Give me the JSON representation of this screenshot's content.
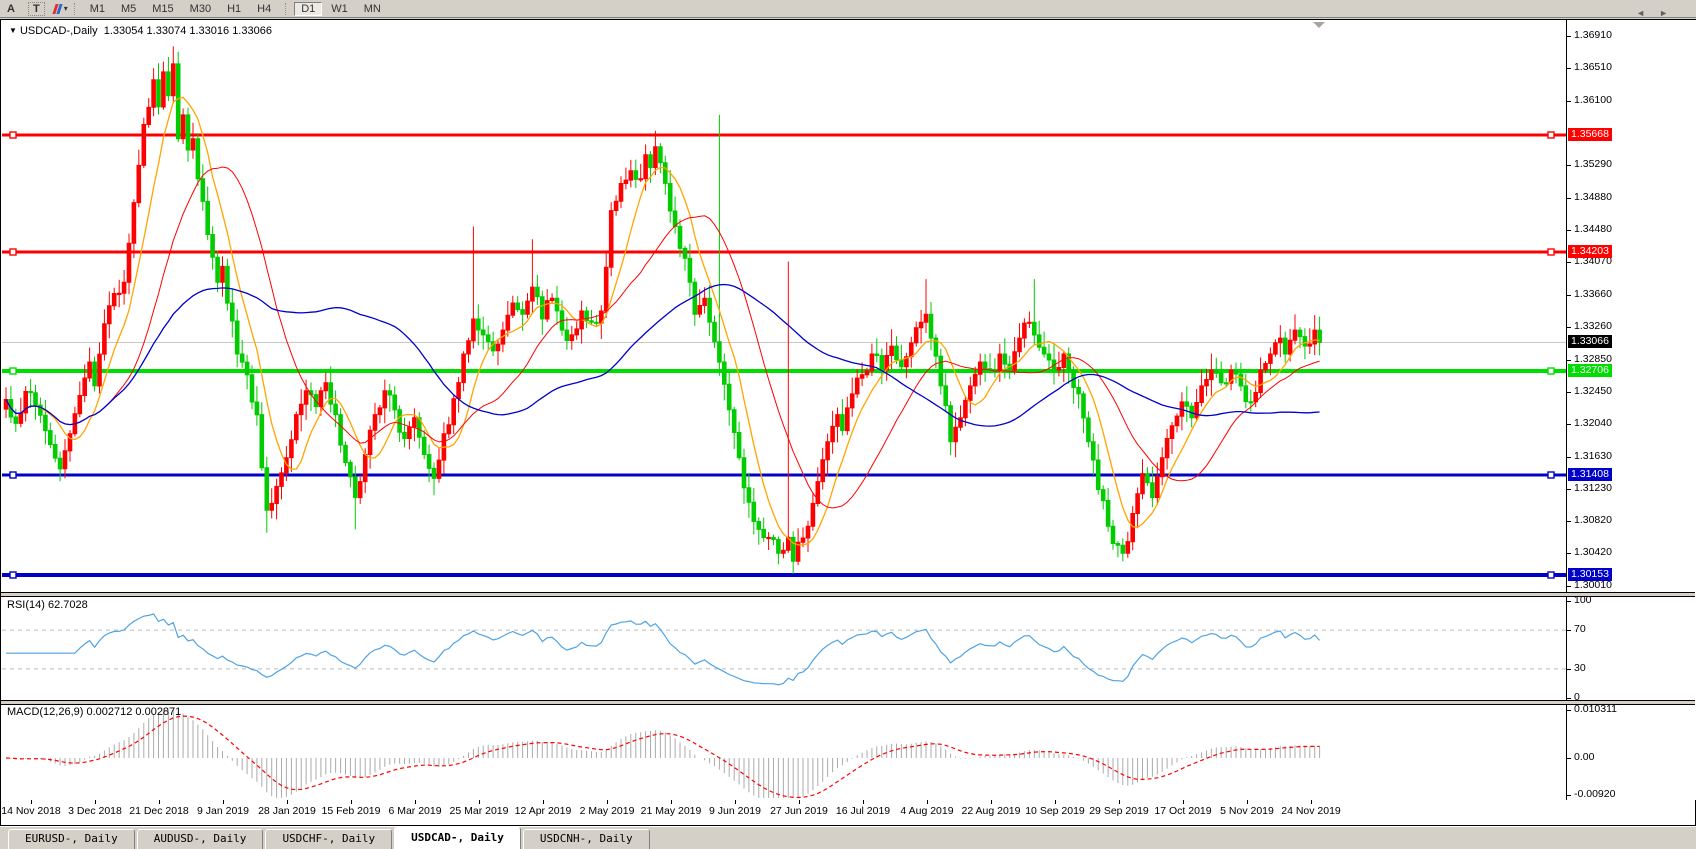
{
  "toolbar": {
    "tool_a": "A",
    "tool_t": "T",
    "crayon_icon": "colors-crayon-icon",
    "timeframes": [
      {
        "label": "M1"
      },
      {
        "label": "M5"
      },
      {
        "label": "M15"
      },
      {
        "label": "M30"
      },
      {
        "label": "H1"
      },
      {
        "label": "H4"
      },
      {
        "label": "D1",
        "active": true
      },
      {
        "label": "W1"
      },
      {
        "label": "MN"
      }
    ]
  },
  "chart": {
    "title_marker": "▼",
    "title": "USDCAD-,Daily",
    "quote": "1.33054 1.33074 1.33016 1.33066"
  },
  "price_axis": {
    "ticks": [
      "1.36910",
      "1.36510",
      "1.36100",
      "1.35290",
      "1.34880",
      "1.34480",
      "1.34070",
      "1.33660",
      "1.33260",
      "1.32850",
      "1.32450",
      "1.32040",
      "1.31630",
      "1.31230",
      "1.30820",
      "1.30420",
      "1.30010"
    ],
    "badges": [
      {
        "value": "1.35668",
        "bg": "#FF0000",
        "fg": "#FFFFFF"
      },
      {
        "value": "1.34203",
        "bg": "#FF0000",
        "fg": "#FFFFFF"
      },
      {
        "value": "1.33066",
        "bg": "#000000",
        "fg": "#FFFFFF"
      },
      {
        "value": "1.32706",
        "bg": "#00DD00",
        "fg": "#FFFFFF"
      },
      {
        "value": "1.31408",
        "bg": "#0000C8",
        "fg": "#FFFFFF"
      },
      {
        "value": "1.30153",
        "bg": "#0000C8",
        "fg": "#FFFFFF"
      }
    ]
  },
  "rsi_pane": {
    "label": "RSI(14) 62.7028",
    "ticks": [
      {
        "v": 100,
        "t": "100"
      },
      {
        "v": 70,
        "t": "70"
      },
      {
        "v": 30,
        "t": "30"
      },
      {
        "v": 0,
        "t": "0"
      }
    ],
    "dashed_levels": [
      70,
      30
    ],
    "line_color": "#4FA3E3"
  },
  "macd_pane": {
    "label": "MACD(12,26,9) 0.002712 0.002871",
    "ticks": [
      {
        "v": 0.010311,
        "t": "0.010311"
      },
      {
        "v": 0.0,
        "t": "0.00"
      },
      {
        "v": -0.0092,
        "t": "-0.00920"
      }
    ],
    "hist_color": "#ABABAB",
    "signal_color": "#FF0000"
  },
  "dates": [
    "14 Nov 2018",
    "3 Dec 2018",
    "21 Dec 2018",
    "9 Jan 2019",
    "28 Jan 2019",
    "15 Feb 2019",
    "6 Mar 2019",
    "25 Mar 2019",
    "12 Apr 2019",
    "2 May 2019",
    "21 May 2019",
    "9 Jun 2019",
    "27 Jun 2019",
    "16 Jul 2019",
    "4 Aug 2019",
    "22 Aug 2019",
    "10 Sep 2019",
    "29 Sep 2019",
    "17 Oct 2019",
    "5 Nov 2019",
    "24 Nov 2019"
  ],
  "tabs": [
    {
      "label": "EURUSD-, Daily"
    },
    {
      "label": "AUDUSD-, Daily"
    },
    {
      "label": "USDCHF-, Daily"
    },
    {
      "label": "USDCAD-, Daily",
      "active": true
    },
    {
      "label": "USDCNH-, Daily"
    }
  ],
  "tab_scroll": {
    "left": "◄",
    "right": "►"
  },
  "chart_data": {
    "type": "candlestick",
    "symbol": "USDCAD",
    "period": "Daily",
    "bar_open": 1.33054,
    "bar_high": 1.33074,
    "bar_low": 1.33016,
    "bar_close": 1.33066,
    "up_color": "#FF0000",
    "down_color": "#00CC00",
    "price_range": {
      "top": 1.3691,
      "bottom": 1.3001
    },
    "current_price_line": {
      "price": 1.33066,
      "color": "#C8C8C8"
    },
    "hlines": [
      {
        "price": 1.35668,
        "color": "#FF0000",
        "width": 3
      },
      {
        "price": 1.34203,
        "color": "#FF0000",
        "width": 3
      },
      {
        "price": 1.32706,
        "color": "#00DD00",
        "width": 4
      },
      {
        "price": 1.31408,
        "color": "#0000C8",
        "width": 3
      },
      {
        "price": 1.30153,
        "color": "#0000C8",
        "width": 4
      }
    ],
    "moving_averages": [
      {
        "window": 8,
        "color": "#FFA500",
        "stroke": 1.3
      },
      {
        "window": 21,
        "color": "#FF0000",
        "stroke": 1.0
      },
      {
        "window": 55,
        "color": "#0000CC",
        "stroke": 1.3
      }
    ],
    "num_bars": 268,
    "price_anchors": [
      [
        0,
        1.3235
      ],
      [
        2,
        1.3205
      ],
      [
        4,
        1.3245
      ],
      [
        6,
        1.3228
      ],
      [
        8,
        1.3196
      ],
      [
        11,
        1.3148
      ],
      [
        13,
        1.3192
      ],
      [
        15,
        1.324
      ],
      [
        17,
        1.3282
      ],
      [
        18,
        1.3252
      ],
      [
        20,
        1.333
      ],
      [
        22,
        1.3368
      ],
      [
        24,
        1.3382
      ],
      [
        26,
        1.3482
      ],
      [
        28,
        1.358
      ],
      [
        30,
        1.3636
      ],
      [
        31,
        1.3602
      ],
      [
        32,
        1.3646
      ],
      [
        33,
        1.3616
      ],
      [
        34,
        1.3656
      ],
      [
        35,
        1.3562
      ],
      [
        36,
        1.3592
      ],
      [
        37,
        1.3548
      ],
      [
        38,
        1.3562
      ],
      [
        39,
        1.3512
      ],
      [
        41,
        1.3442
      ],
      [
        43,
        1.3382
      ],
      [
        44,
        1.3402
      ],
      [
        45,
        1.3356
      ],
      [
        47,
        1.3292
      ],
      [
        49,
        1.3266
      ],
      [
        51,
        1.3216
      ],
      [
        53,
        1.3096
      ],
      [
        55,
        1.3126
      ],
      [
        57,
        1.3162
      ],
      [
        59,
        1.3216
      ],
      [
        61,
        1.3246
      ],
      [
        63,
        1.3226
      ],
      [
        65,
        1.3256
      ],
      [
        67,
        1.3216
      ],
      [
        69,
        1.3156
      ],
      [
        71,
        1.3112
      ],
      [
        73,
        1.3166
      ],
      [
        75,
        1.3216
      ],
      [
        77,
        1.3246
      ],
      [
        79,
        1.3222
      ],
      [
        81,
        1.3186
      ],
      [
        83,
        1.3212
      ],
      [
        85,
        1.3166
      ],
      [
        87,
        1.3136
      ],
      [
        89,
        1.3192
      ],
      [
        91,
        1.3236
      ],
      [
        93,
        1.3292
      ],
      [
        95,
        1.3336
      ],
      [
        97,
        1.3316
      ],
      [
        99,
        1.3296
      ],
      [
        101,
        1.3322
      ],
      [
        103,
        1.3356
      ],
      [
        105,
        1.3342
      ],
      [
        107,
        1.3376
      ],
      [
        109,
        1.3336
      ],
      [
        111,
        1.3362
      ],
      [
        113,
        1.3322
      ],
      [
        115,
        1.3316
      ],
      [
        117,
        1.3346
      ],
      [
        119,
        1.3332
      ],
      [
        121,
        1.3346
      ],
      [
        123,
        1.3472
      ],
      [
        125,
        1.3506
      ],
      [
        127,
        1.3522
      ],
      [
        129,
        1.3512
      ],
      [
        130,
        1.3542
      ],
      [
        131,
        1.3526
      ],
      [
        132,
        1.3552
      ],
      [
        133,
        1.3532
      ],
      [
        134,
        1.3506
      ],
      [
        136,
        1.3452
      ],
      [
        138,
        1.3412
      ],
      [
        140,
        1.3342
      ],
      [
        142,
        1.3362
      ],
      [
        143,
        1.3332
      ],
      [
        145,
        1.3282
      ],
      [
        147,
        1.3222
      ],
      [
        149,
        1.3162
      ],
      [
        151,
        1.3106
      ],
      [
        153,
        1.3072
      ],
      [
        155,
        1.3062
      ],
      [
        157,
        1.3042
      ],
      [
        159,
        1.3062
      ],
      [
        160,
        1.3032
      ],
      [
        161,
        1.3056
      ],
      [
        163,
        1.3076
      ],
      [
        165,
        1.3132
      ],
      [
        167,
        1.3182
      ],
      [
        169,
        1.3216
      ],
      [
        170,
        1.3196
      ],
      [
        172,
        1.3242
      ],
      [
        174,
        1.3266
      ],
      [
        176,
        1.3292
      ],
      [
        178,
        1.3272
      ],
      [
        180,
        1.3302
      ],
      [
        182,
        1.3276
      ],
      [
        184,
        1.3306
      ],
      [
        186,
        1.3332
      ],
      [
        187,
        1.3342
      ],
      [
        188,
        1.3312
      ],
      [
        190,
        1.3252
      ],
      [
        192,
        1.3182
      ],
      [
        194,
        1.3212
      ],
      [
        196,
        1.3252
      ],
      [
        198,
        1.3282
      ],
      [
        200,
        1.3272
      ],
      [
        202,
        1.3292
      ],
      [
        204,
        1.3272
      ],
      [
        206,
        1.3312
      ],
      [
        208,
        1.3332
      ],
      [
        209,
        1.3316
      ],
      [
        211,
        1.3292
      ],
      [
        213,
        1.3272
      ],
      [
        215,
        1.3292
      ],
      [
        216,
        1.3272
      ],
      [
        218,
        1.3242
      ],
      [
        220,
        1.3182
      ],
      [
        222,
        1.3122
      ],
      [
        224,
        1.3076
      ],
      [
        226,
        1.3052
      ],
      [
        227,
        1.3042
      ],
      [
        229,
        1.3092
      ],
      [
        231,
        1.3142
      ],
      [
        233,
        1.3112
      ],
      [
        235,
        1.3162
      ],
      [
        237,
        1.3202
      ],
      [
        239,
        1.3232
      ],
      [
        241,
        1.3212
      ],
      [
        243,
        1.3252
      ],
      [
        245,
        1.3272
      ],
      [
        247,
        1.3256
      ],
      [
        249,
        1.3272
      ],
      [
        251,
        1.3252
      ],
      [
        253,
        1.3232
      ],
      [
        255,
        1.3272
      ],
      [
        257,
        1.3292
      ],
      [
        259,
        1.3312
      ],
      [
        260,
        1.3292
      ],
      [
        262,
        1.3322
      ],
      [
        264,
        1.3302
      ],
      [
        266,
        1.3322
      ],
      [
        267,
        1.33066
      ]
    ],
    "spike_highs": [
      [
        34,
        1.3678
      ],
      [
        95,
        1.3452
      ],
      [
        107,
        1.3436
      ],
      [
        145,
        1.3592
      ],
      [
        159,
        1.3408
      ],
      [
        187,
        1.3386
      ],
      [
        209,
        1.3386
      ]
    ],
    "spike_lows": [
      [
        11,
        1.3138
      ],
      [
        53,
        1.3068
      ],
      [
        71,
        1.3072
      ],
      [
        87,
        1.3118
      ],
      [
        160,
        1.3016
      ],
      [
        227,
        1.3032
      ]
    ],
    "rsi": {
      "period": 14,
      "current": 62.7028,
      "range": [
        0,
        100
      ],
      "levels": [
        70,
        30
      ]
    },
    "macd": {
      "fast": 12,
      "slow": 26,
      "signal": 9,
      "current_main": 0.002712,
      "current_signal": 0.002871,
      "axis_max": 0.010311,
      "axis_min": -0.0092
    }
  }
}
